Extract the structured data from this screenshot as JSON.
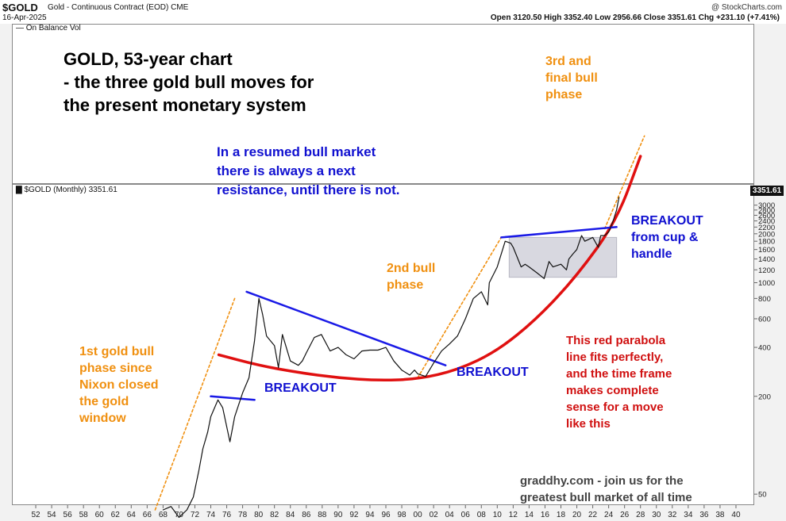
{
  "header": {
    "symbol": "$GOLD",
    "description": "Gold - Continuous Contract (EOD)",
    "exchange": "CME",
    "date": "16-Apr-2025",
    "copyright": "@ StockCharts.com",
    "ohlc": "Open 3120.50   High 3352.40   Low 2956.66   Close 3351.61   Chg +231.10 (+7.41%)"
  },
  "panels": {
    "top_label": "On Balance Vol",
    "main_label": "$GOLD (Monthly) 3351.61",
    "price_tag": "3351.61"
  },
  "annotations": {
    "title": "GOLD, 53-year chart\n- the three gold bull moves for\nthe present monetary system",
    "resistance": "In a resumed bull market\nthere is always a next\nresistance, until there is not.",
    "third_phase": "3rd and\nfinal bull\nphase",
    "second_phase": "2nd bull\nphase",
    "first_phase": "1st gold bull\nphase since\nNixon closed\nthe gold\nwindow",
    "breakout1": "BREAKOUT",
    "breakout2": "BREAKOUT",
    "breakout3": "BREAKOUT\nfrom cup &\nhandle",
    "parabola": "This red parabola\nline fits perfectly,\nand the time frame\nmakes complete\nsense for a move\nlike this",
    "credit": "graddhy.com - join us for the\ngreatest bull market of all time"
  },
  "colors": {
    "price": "#111111",
    "parabola": "#e01010",
    "trendline": "#1a1ae6",
    "phase_line": "#f09010",
    "cup_box": "#d8d8e0"
  },
  "chart_data": {
    "type": "line",
    "y_scale": "log",
    "ylim": [
      40,
      3500
    ],
    "xlim": [
      1951,
      2041
    ],
    "x_tick_labels": [
      "52",
      "54",
      "56",
      "58",
      "60",
      "62",
      "64",
      "66",
      "68",
      "70",
      "72",
      "74",
      "76",
      "78",
      "80",
      "82",
      "84",
      "86",
      "88",
      "90",
      "92",
      "94",
      "96",
      "98",
      "00",
      "02",
      "04",
      "06",
      "08",
      "10",
      "12",
      "14",
      "16",
      "18",
      "20",
      "22",
      "24",
      "26",
      "28",
      "30",
      "32",
      "34",
      "36",
      "38",
      "40"
    ],
    "y_tick_labels": [
      {
        "label": "3000",
        "value": 3000
      },
      {
        "label": "2800",
        "value": 2800
      },
      {
        "label": "2600",
        "value": 2600
      },
      {
        "label": "2400",
        "value": 2400
      },
      {
        "label": "2200",
        "value": 2200
      },
      {
        "label": "2000",
        "value": 2000
      },
      {
        "label": "1800",
        "value": 1800
      },
      {
        "label": "1600",
        "value": 1600
      },
      {
        "label": "1400",
        "value": 1400
      },
      {
        "label": "1200",
        "value": 1200
      },
      {
        "label": "1000",
        "value": 1000
      },
      {
        "label": "800",
        "value": 800
      },
      {
        "label": "600",
        "value": 600
      },
      {
        "label": "400",
        "value": 400
      },
      {
        "label": "200",
        "value": 200
      },
      {
        "label": "50",
        "value": 50
      }
    ],
    "series": [
      {
        "role": "price",
        "x": [
          1968,
          1969,
          1970,
          1971,
          1971.8,
          1972.5,
          1973,
          1973.6,
          1974,
          1974.9,
          1975.5,
          1976.4,
          1977,
          1978,
          1978.8,
          1979.5,
          1980.05,
          1980.5,
          1981,
          1982,
          1982.5,
          1983,
          1984,
          1985,
          1985.5,
          1986,
          1987,
          1987.9,
          1989,
          1990,
          1991,
          1992,
          1993,
          1994,
          1995,
          1996,
          1997,
          1998,
          1999,
          1999.6,
          2000,
          2001,
          2002,
          2003,
          2004,
          2005,
          2006,
          2007,
          2008,
          2008.8,
          2009,
          2010,
          2011,
          2011.7,
          2012,
          2013,
          2013.5,
          2014,
          2015,
          2015.9,
          2016.5,
          2017,
          2018,
          2018.7,
          2019,
          2019.5,
          2020,
          2020.6,
          2021,
          2022,
          2022.7,
          2023,
          2023.5,
          2024,
          2024.5,
          2025,
          2025.3
        ],
        "y": [
          40,
          42,
          36,
          40,
          48,
          70,
          95,
          120,
          150,
          190,
          170,
          105,
          150,
          210,
          260,
          440,
          800,
          640,
          470,
          410,
          300,
          480,
          330,
          310,
          330,
          370,
          460,
          480,
          380,
          400,
          360,
          340,
          380,
          385,
          385,
          400,
          330,
          290,
          270,
          290,
          275,
          265,
          320,
          380,
          420,
          470,
          600,
          800,
          880,
          730,
          1000,
          1250,
          1800,
          1750,
          1650,
          1250,
          1300,
          1250,
          1150,
          1060,
          1350,
          1250,
          1300,
          1200,
          1400,
          1500,
          1600,
          1950,
          1800,
          1900,
          1650,
          1950,
          1950,
          2050,
          2350,
          2800,
          3351.61
        ]
      },
      {
        "role": "parabola",
        "x": [
          1975,
          1980,
          1985,
          1990,
          1995,
          2000,
          2005,
          2010,
          2015,
          2020,
          2025,
          2028
        ],
        "y": [
          360,
          310,
          280,
          260,
          250,
          255,
          290,
          380,
          600,
          1100,
          2400,
          6000
        ]
      },
      {
        "role": "trendline",
        "x": [
          1978.5,
          2003.5
        ],
        "y": [
          880,
          310
        ]
      },
      {
        "role": "trendline",
        "x": [
          1974,
          1979.5
        ],
        "y": [
          200,
          190
        ]
      },
      {
        "role": "trendline",
        "x": [
          2010.5,
          2025
        ],
        "y": [
          1900,
          2200
        ]
      },
      {
        "role": "phase_line",
        "x": [
          1967,
          1977
        ],
        "y": [
          40,
          800
        ]
      },
      {
        "role": "phase_line",
        "x": [
          2000,
          2010.5
        ],
        "y": [
          260,
          1900
        ]
      },
      {
        "role": "phase_line",
        "x": [
          2023.5,
          2028.5
        ],
        "y": [
          2150,
          8000
        ]
      }
    ],
    "cup_box": {
      "x": [
        2011.5,
        2025
      ],
      "y": [
        1080,
        1900
      ]
    }
  }
}
